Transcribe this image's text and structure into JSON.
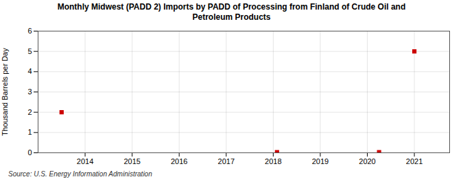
{
  "chart_data": {
    "type": "scatter",
    "title": "Monthly Midwest (PADD 2) Imports by PADD of Processing from Finland of Crude Oil and\nPetroleum Products",
    "ylabel": "Thousand Barrels per Day",
    "source": "Source: U.S. Energy Information Administration",
    "x": [
      2013.5,
      2018.08,
      2020.25,
      2021.0
    ],
    "values": [
      2.0,
      0.03,
      0.03,
      5.0
    ],
    "color": "#cc0000",
    "marker": "square",
    "xlim": [
      2013.0,
      2021.75
    ],
    "ylim": [
      0,
      6
    ],
    "xticks": [
      2014,
      2015,
      2016,
      2017,
      2018,
      2019,
      2020,
      2021
    ],
    "yticks": [
      0,
      1,
      2,
      3,
      4,
      5,
      6
    ],
    "grid": true
  }
}
